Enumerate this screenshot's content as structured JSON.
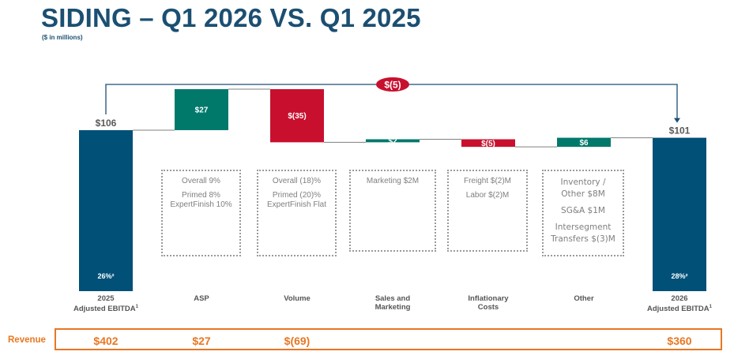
{
  "header": {
    "title": "SIDING – Q1 2026 VS. Q1 2025",
    "subtitle": "($ in millions)"
  },
  "colors": {
    "total": "#005078",
    "increase": "#00796b",
    "decrease": "#c8102e",
    "title": "#1b4f72",
    "revenue": "#e87722"
  },
  "chart_data": {
    "type": "waterfall",
    "ylim": [
      0,
      150
    ],
    "bars": [
      {
        "category": "2025\nAdjusted EBITDA¹",
        "kind": "total",
        "value": 106,
        "label": "$106",
        "margin_label": "26%²"
      },
      {
        "category": "ASP",
        "kind": "delta",
        "value": 27,
        "label": "$27"
      },
      {
        "category": "Volume",
        "kind": "delta",
        "value": -35,
        "label": "$(35)"
      },
      {
        "category": "Sales and\nMarketing",
        "kind": "delta",
        "value": 2,
        "label": "$2"
      },
      {
        "category": "Inflationary\nCosts",
        "kind": "delta",
        "value": -5,
        "label": "$(5)"
      },
      {
        "category": "Other",
        "kind": "delta",
        "value": 6,
        "label": "$6"
      },
      {
        "category": "2026\nAdjusted EBITDA¹",
        "kind": "total",
        "value": 101,
        "label": "$101",
        "margin_label": "28%²"
      }
    ],
    "overall_change": {
      "value": -5,
      "label": "$(5)"
    }
  },
  "notes": [
    [
      "Overall 9%",
      "",
      "Primed 8%",
      "ExpertFinish 10%"
    ],
    [
      "Overall (18)%",
      "",
      "Primed (20)%",
      "ExpertFinish Flat"
    ],
    [
      "Marketing $2M"
    ],
    [
      "Freight $(2)M",
      "",
      "Labor $(2)M"
    ],
    [
      "Inventory /",
      "Other $8M",
      "",
      "SG&A $1M",
      "",
      "Intersegment",
      "Transfers $(3)M"
    ]
  ],
  "revenue": {
    "label": "Revenue",
    "values": [
      "$402",
      "$27",
      "$(69)",
      "",
      "",
      "",
      "$360"
    ]
  }
}
